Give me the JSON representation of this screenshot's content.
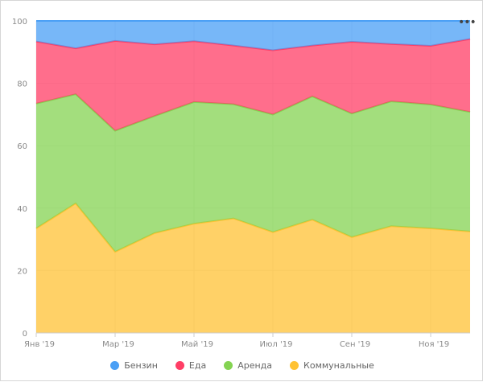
{
  "chart_data": {
    "type": "area",
    "stacking": "percent",
    "categories": [
      "Янв '19",
      "Фев '19",
      "Мар '19",
      "Апр '19",
      "Май '19",
      "Июн '19",
      "Июл '19",
      "Авг '19",
      "Сен '19",
      "Окт '19",
      "Ноя '19",
      "Дек '19"
    ],
    "x_tick_labels": [
      "Янв '19",
      "Мар '19",
      "Май '19",
      "Июл '19",
      "Сен '19",
      "Ноя '19"
    ],
    "y_ticks": [
      0,
      20,
      40,
      60,
      80,
      100
    ],
    "ylim": [
      0,
      100
    ],
    "grid": true,
    "legend_position": "bottom",
    "series": [
      {
        "name": "Бензин",
        "color": "#4a9ff5",
        "values": [
          6.6,
          8.8,
          6.4,
          7.5,
          6.5,
          7.9,
          9.4,
          7.9,
          6.7,
          7.4,
          8.0,
          5.8
        ]
      },
      {
        "name": "Еда",
        "color": "#ff3e66",
        "values": [
          19.9,
          14.7,
          28.8,
          23.0,
          19.5,
          18.8,
          20.6,
          16.3,
          23.0,
          18.4,
          18.8,
          23.4
        ]
      },
      {
        "name": "Аренда",
        "color": "#84d352",
        "values": [
          40.0,
          35.0,
          38.8,
          37.5,
          39.0,
          36.6,
          37.7,
          39.5,
          39.6,
          40.0,
          39.7,
          38.3
        ]
      },
      {
        "name": "Коммунальные",
        "color": "#ffc234",
        "values": [
          33.5,
          41.5,
          26.0,
          32.0,
          35.0,
          36.7,
          32.3,
          36.3,
          30.7,
          34.2,
          33.5,
          32.5
        ]
      }
    ]
  },
  "menu_icon": "more-horizontal-icon"
}
